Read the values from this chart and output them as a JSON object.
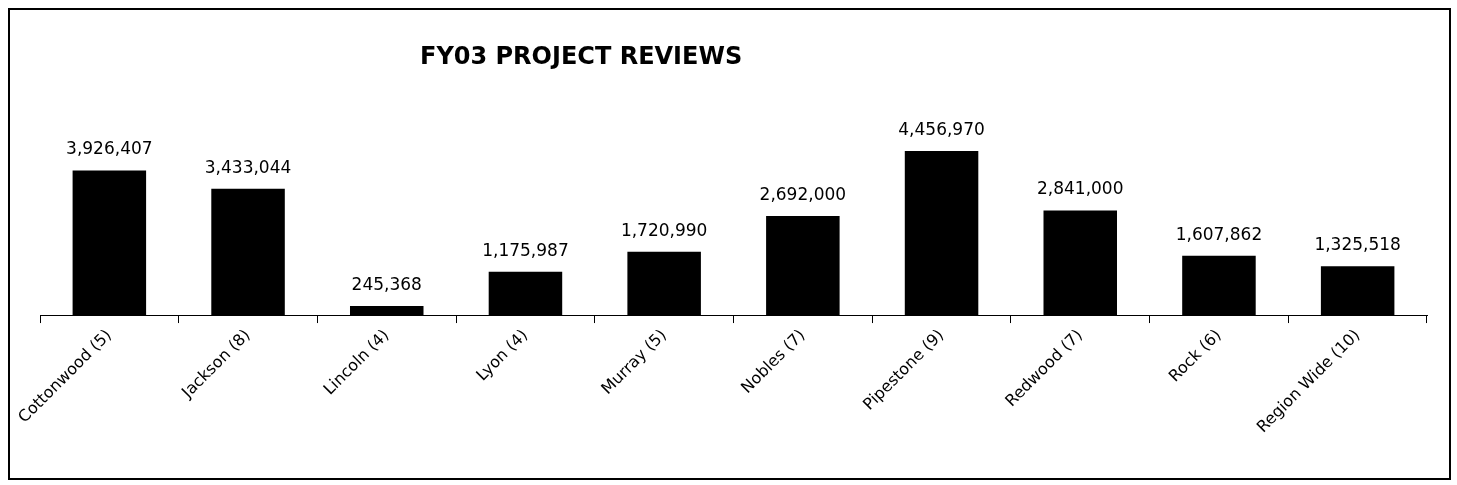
{
  "chart_data": {
    "type": "bar",
    "title": "FY03 PROJECT REVIEWS",
    "categories": [
      "Cottonwood (5)",
      "Jackson (8)",
      "Lincoln (4)",
      "Lyon (4)",
      "Murray (5)",
      "Nobles (7)",
      "Pipestone (9)",
      "Redwood (7)",
      "Rock (6)",
      "Region Wide (10)"
    ],
    "values": [
      3926407,
      3433044,
      245368,
      1175987,
      1720990,
      2692000,
      4456970,
      2841000,
      1607862,
      1325518
    ],
    "value_labels": [
      "3,926,407",
      "3,433,044",
      "245,368",
      "1,175,987",
      "1,720,990",
      "2,692,000",
      "4,456,970",
      "2,841,000",
      "1,607,862",
      "1,325,518"
    ],
    "color": "#000000"
  }
}
